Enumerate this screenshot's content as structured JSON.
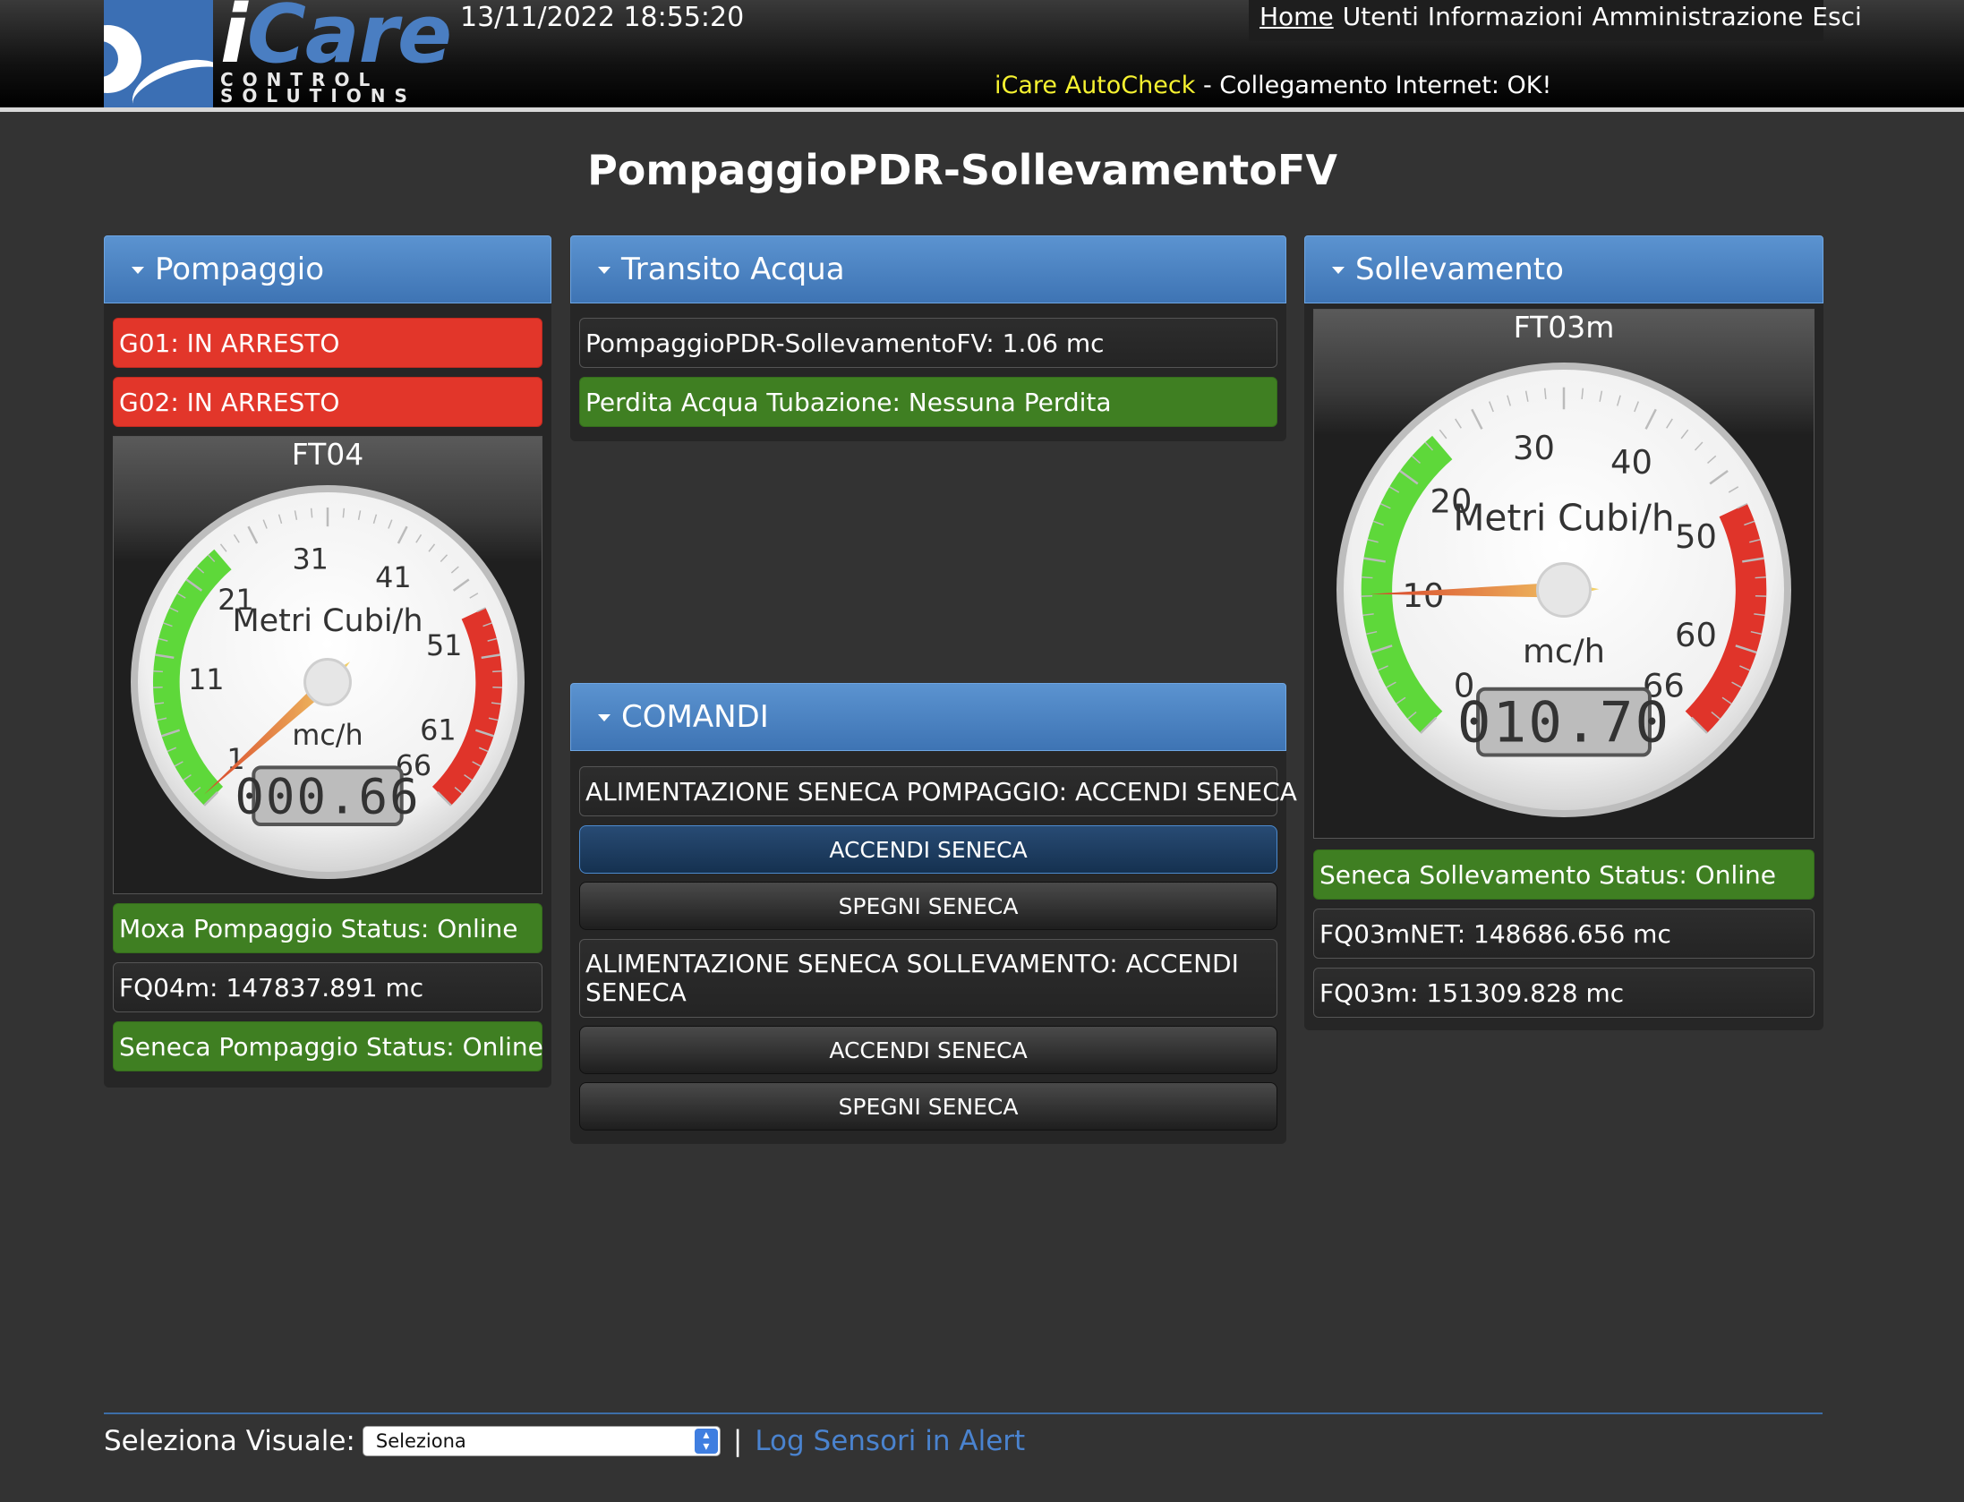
{
  "header": {
    "brand": "iCare",
    "brand_sub_1": "CONTROL",
    "brand_sub_2": "SOLUTIONS",
    "datetime": "13/11/2022 18:55:20",
    "nav": [
      "Home",
      "Utenti",
      "Informazioni",
      "Amministrazione",
      "Esci"
    ],
    "autocheck_label": "iCare AutoCheck",
    "autocheck_status": " - Collegamento Internet: OK!"
  },
  "page_title": "PompaggioPDR-SollevamentoFV",
  "panels": {
    "pompaggio": {
      "title": "Pompaggio",
      "rows_top": [
        "G01: IN ARRESTO",
        "G02: IN ARRESTO"
      ],
      "gauge": {
        "title": "FT04",
        "label": "Metri Cubi/h",
        "unit": "mc/h",
        "display": "000.66",
        "value": 0.66,
        "min": 0,
        "max": 66,
        "ticks": [
          "1",
          "11",
          "21",
          "31",
          "41",
          "51",
          "61",
          "66"
        ]
      },
      "rows_bottom": [
        "Moxa Pompaggio Status: Online",
        "FQ04m: 147837.891 mc",
        "Seneca Pompaggio Status: Online"
      ]
    },
    "transito": {
      "title": "Transito Acqua",
      "rows": [
        "PompaggioPDR-SollevamentoFV: 1.06 mc",
        "Perdita Acqua Tubazione: Nessuna Perdita"
      ]
    },
    "comandi": {
      "title": "COMANDI",
      "label_1": "ALIMENTAZIONE SENECA POMPAGGIO: ACCENDI SENECA",
      "btn_on_1": "ACCENDI SENECA",
      "btn_off_1": "SPEGNI SENECA",
      "label_2": "ALIMENTAZIONE SENECA SOLLEVAMENTO: ACCENDI SENECA",
      "btn_on_2": "ACCENDI SENECA",
      "btn_off_2": "SPEGNI SENECA"
    },
    "sollevamento": {
      "title": "Sollevamento",
      "gauge": {
        "title": "FT03m",
        "label": "Metri Cubi/h",
        "unit": "mc/h",
        "display": "010.70",
        "value": 10.7,
        "min": 0,
        "max": 66,
        "ticks": [
          "0",
          "10",
          "20",
          "30",
          "40",
          "50",
          "60",
          "66"
        ]
      },
      "rows": [
        "Seneca Sollevamento Status: Online",
        "FQ03mNET: 148686.656 mc",
        "FQ03m: 151309.828 mc"
      ]
    }
  },
  "footer": {
    "select_label": "Seleziona Visuale:",
    "select_value": "Seleziona",
    "separator": "|",
    "log_link": "Log Sensori in Alert"
  },
  "colors": {
    "alarm_red": "#e2362a",
    "ok_green": "#3f7f22",
    "header_blue": "#4a83c4",
    "autocheck_yellow": "#f6f230",
    "link_blue": "#4a83cf"
  }
}
